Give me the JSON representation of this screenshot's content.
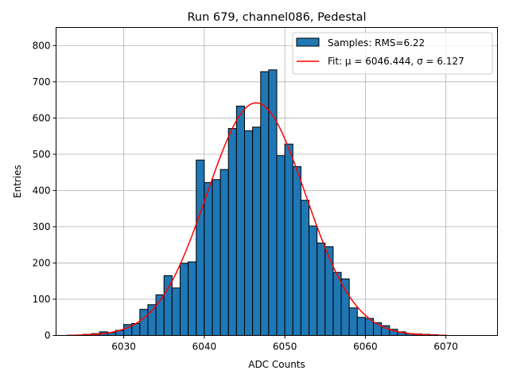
{
  "chart_data": {
    "type": "bar",
    "title": "Run 679, channel086, Pedestal",
    "xlabel": "ADC Counts",
    "ylabel": "Entries",
    "xlim": [
      6021.6,
      6076.4
    ],
    "ylim": [
      0,
      850
    ],
    "grid": true,
    "legend_position": "top-right",
    "x_ticks": [
      6030,
      6040,
      6050,
      6060,
      6070
    ],
    "y_ticks": [
      0,
      100,
      200,
      300,
      400,
      500,
      600,
      700,
      800
    ],
    "histogram": {
      "name": "Samples: RMS=6.22",
      "color": "#1f77b4",
      "edge_color": "#000000",
      "bin_width": 1,
      "bin_start": [
        6023,
        6024,
        6025,
        6026,
        6027,
        6028,
        6029,
        6030,
        6031,
        6032,
        6033,
        6034,
        6035,
        6036,
        6037,
        6038,
        6039,
        6040,
        6041,
        6042,
        6043,
        6044,
        6045,
        6046,
        6047,
        6048,
        6049,
        6050,
        6051,
        6052,
        6053,
        6054,
        6055,
        6056,
        6057,
        6058,
        6059,
        6060,
        6061,
        6062,
        6063,
        6064,
        6065,
        6066,
        6067,
        6068,
        6069,
        6070,
        6071,
        6072,
        6073,
        6074
      ],
      "counts": [
        1,
        1,
        3,
        5,
        10,
        8,
        14,
        30,
        33,
        72,
        85,
        112,
        165,
        131,
        199,
        203,
        484,
        422,
        430,
        458,
        571,
        633,
        565,
        575,
        728,
        733,
        496,
        528,
        466,
        373,
        302,
        255,
        245,
        174,
        156,
        76,
        50,
        47,
        35,
        27,
        17,
        10,
        5,
        4,
        3,
        2,
        1,
        0,
        0,
        0,
        0,
        0
      ]
    },
    "fit": {
      "name": "Fit: μ = 6046.444, σ = 6.127",
      "color": "#ff0000",
      "mu": 6046.444,
      "sigma": 6.127,
      "amplitude": 642,
      "x_range": [
        6023,
        6070
      ]
    }
  }
}
